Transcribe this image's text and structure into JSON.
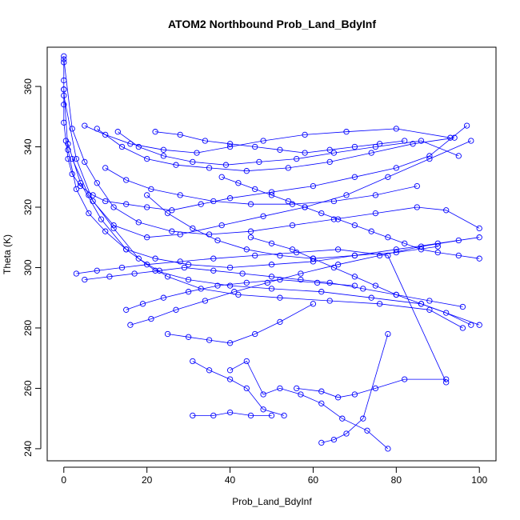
{
  "chart_data": {
    "type": "line",
    "title": "ATOM2 Northbound Prob_Land_BdyInf",
    "xlabel": "Prob_Land_BdyInf",
    "ylabel": "Theta (K)",
    "xlim": [
      -4,
      104
    ],
    "ylim": [
      236,
      373
    ],
    "xticks": [
      0,
      20,
      40,
      60,
      80,
      100
    ],
    "yticks": [
      240,
      260,
      280,
      300,
      320,
      340,
      360
    ],
    "xtick_labels": [
      "0",
      "20",
      "40",
      "60",
      "80",
      "100"
    ],
    "ytick_labels": [
      "240",
      "260",
      "280",
      "300",
      "320",
      "340",
      "360"
    ],
    "grid": false,
    "color": "#0000ff",
    "marker": "open-circle",
    "series": [
      {
        "x": [
          0,
          0,
          0,
          0,
          0,
          0,
          0.5,
          1,
          2,
          4,
          7,
          10,
          15,
          20,
          26,
          33,
          40,
          50,
          60,
          70,
          80,
          88,
          97
        ],
        "y": [
          370,
          368,
          362,
          359,
          354,
          348,
          342,
          336,
          331,
          327,
          324,
          322,
          321,
          320,
          319,
          321,
          323,
          325,
          327,
          330,
          333,
          337,
          347
        ]
      },
      {
        "x": [
          0,
          2,
          5,
          8,
          12,
          18,
          26,
          35,
          45,
          55,
          65,
          75,
          85,
          92,
          100
        ],
        "y": [
          369,
          346,
          335,
          328,
          320,
          315,
          312,
          311,
          312,
          314,
          316,
          318,
          320,
          319,
          313
        ]
      },
      {
        "x": [
          0,
          1,
          3,
          6,
          10,
          15,
          22,
          30,
          40,
          50,
          60,
          70,
          80,
          90,
          100
        ],
        "y": [
          359,
          339,
          326,
          318,
          312,
          306,
          303,
          301,
          300,
          301,
          302,
          304,
          306,
          308,
          310
        ]
      },
      {
        "x": [
          0,
          3,
          7,
          12,
          20,
          28,
          38,
          48,
          58,
          68,
          78,
          88,
          98
        ],
        "y": [
          357,
          336,
          322,
          314,
          310,
          311,
          314,
          317,
          320,
          324,
          330,
          336,
          342
        ]
      },
      {
        "x": [
          1,
          4,
          9,
          15,
          22,
          30,
          40,
          50,
          62,
          74,
          86,
          100
        ],
        "y": [
          341,
          328,
          316,
          306,
          299,
          296,
          294,
          293,
          292,
          290,
          288,
          281
        ]
      },
      {
        "x": [
          2,
          6,
          12,
          18,
          25,
          33,
          42,
          52,
          64,
          76,
          88,
          96
        ],
        "y": [
          336,
          324,
          313,
          303,
          297,
          293,
          291,
          290,
          289,
          288,
          286,
          280
        ]
      },
      {
        "x": [
          3,
          8,
          14,
          20,
          28,
          36,
          46,
          56,
          66,
          78,
          92
        ],
        "y": [
          298,
          299,
          300,
          301,
          302,
          303,
          304,
          305,
          306,
          304,
          262
        ]
      },
      {
        "x": [
          5,
          10,
          16,
          24,
          32,
          40,
          48,
          58,
          68,
          80,
          93
        ],
        "y": [
          347,
          344,
          341,
          339,
          338,
          340,
          342,
          344,
          345,
          346,
          343
        ]
      },
      {
        "x": [
          8,
          14,
          20,
          27,
          35,
          44,
          54,
          64,
          74,
          84,
          94
        ],
        "y": [
          346,
          340,
          336,
          334,
          333,
          332,
          333,
          335,
          338,
          341,
          343
        ]
      },
      {
        "x": [
          10,
          15,
          21,
          28,
          36,
          45,
          55,
          65,
          75,
          85
        ],
        "y": [
          333,
          329,
          326,
          324,
          322,
          321,
          321,
          322,
          324,
          327
        ]
      },
      {
        "x": [
          13,
          18,
          24,
          31,
          39,
          47,
          56,
          65,
          75,
          86,
          95
        ],
        "y": [
          345,
          340,
          337,
          335,
          334,
          335,
          336,
          338,
          340,
          342,
          337
        ]
      },
      {
        "x": [
          15,
          19,
          24,
          30,
          37,
          44,
          52,
          61,
          70
        ],
        "y": [
          286,
          288,
          290,
          292,
          294,
          295,
          296,
          295,
          294
        ]
      },
      {
        "x": [
          16,
          21,
          27,
          34,
          41,
          49,
          57,
          66,
          76,
          86,
          95
        ],
        "y": [
          281,
          283,
          286,
          289,
          292,
          295,
          298,
          301,
          304,
          307,
          309
        ]
      },
      {
        "x": [
          20,
          25,
          31,
          37,
          44,
          52,
          60,
          70,
          80,
          90
        ],
        "y": [
          324,
          318,
          313,
          309,
          306,
          304,
          303,
          304,
          305,
          307
        ]
      },
      {
        "x": [
          25,
          30,
          35,
          40,
          46,
          52,
          60
        ],
        "y": [
          278,
          277,
          276,
          275,
          278,
          282,
          288
        ]
      },
      {
        "x": [
          31,
          35,
          40,
          44,
          48,
          53
        ],
        "y": [
          269,
          266,
          263,
          260,
          253,
          251
        ]
      },
      {
        "x": [
          31,
          36,
          40,
          45,
          50
        ],
        "y": [
          251,
          251,
          252,
          251,
          251
        ]
      },
      {
        "x": [
          40,
          44,
          48,
          52,
          57,
          62,
          67,
          73,
          78
        ],
        "y": [
          266,
          269,
          258,
          260,
          258,
          255,
          250,
          246,
          240
        ]
      },
      {
        "x": [
          56,
          62,
          66,
          70,
          75,
          82,
          92
        ],
        "y": [
          260,
          259,
          257,
          258,
          260,
          263,
          263
        ]
      },
      {
        "x": [
          62,
          65,
          68,
          72,
          78
        ],
        "y": [
          242,
          243,
          245,
          250,
          278
        ]
      },
      {
        "x": [
          38,
          42,
          46,
          50,
          54,
          58,
          62,
          66,
          70,
          74,
          78,
          82,
          86,
          90,
          95,
          100
        ],
        "y": [
          330,
          328,
          326,
          324,
          322,
          320,
          318,
          316,
          314,
          312,
          310,
          308,
          306,
          305,
          304,
          303
        ]
      },
      {
        "x": [
          45,
          50,
          55,
          60,
          65,
          70,
          75,
          80,
          86,
          92,
          98
        ],
        "y": [
          310,
          308,
          306,
          303,
          300,
          297,
          294,
          291,
          288,
          285,
          281
        ]
      },
      {
        "x": [
          22,
          28,
          34,
          40,
          46,
          52,
          58,
          64,
          70,
          76,
          82
        ],
        "y": [
          345,
          344,
          342,
          341,
          340,
          339,
          338,
          339,
          340,
          341,
          342
        ]
      },
      {
        "x": [
          5,
          11,
          17,
          23,
          29,
          36,
          43,
          50,
          57,
          64,
          72,
          80,
          88,
          96
        ],
        "y": [
          296,
          297,
          298,
          299,
          300,
          299,
          298,
          297,
          296,
          295,
          293,
          291,
          289,
          287
        ]
      }
    ]
  }
}
